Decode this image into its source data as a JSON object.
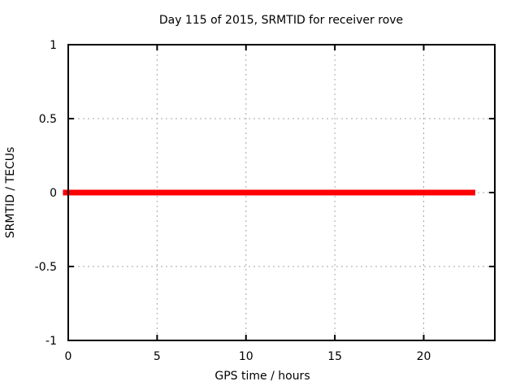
{
  "chart_data": {
    "type": "line",
    "title": "Day 115 of 2015, SRMTID for receiver rove",
    "xlabel": "GPS time / hours",
    "ylabel": "SRMTID / TECUs",
    "xlim": [
      0,
      24
    ],
    "ylim": [
      -1,
      1
    ],
    "xticks": [
      0,
      5,
      10,
      15,
      20
    ],
    "xtick_labels": [
      "0",
      "5",
      "10",
      "15",
      "20"
    ],
    "yticks": [
      -1,
      -0.5,
      0,
      0.5,
      1
    ],
    "ytick_labels": [
      "-1",
      "-0.5",
      "0",
      "0.5",
      "1"
    ],
    "grid": true,
    "grid_x": [
      5,
      10,
      15,
      20
    ],
    "grid_y": [
      -0.5,
      0,
      0.5
    ],
    "legend": "none",
    "series": [
      {
        "name": "SRMTID",
        "color": "#ff0000",
        "linewidth": 7,
        "x": [
          -0.3,
          22.9
        ],
        "y": [
          0,
          0
        ]
      }
    ],
    "colors": {
      "background": "#ffffff",
      "border": "#000000",
      "grid": "#a6a6a6",
      "text": "#000000"
    }
  }
}
